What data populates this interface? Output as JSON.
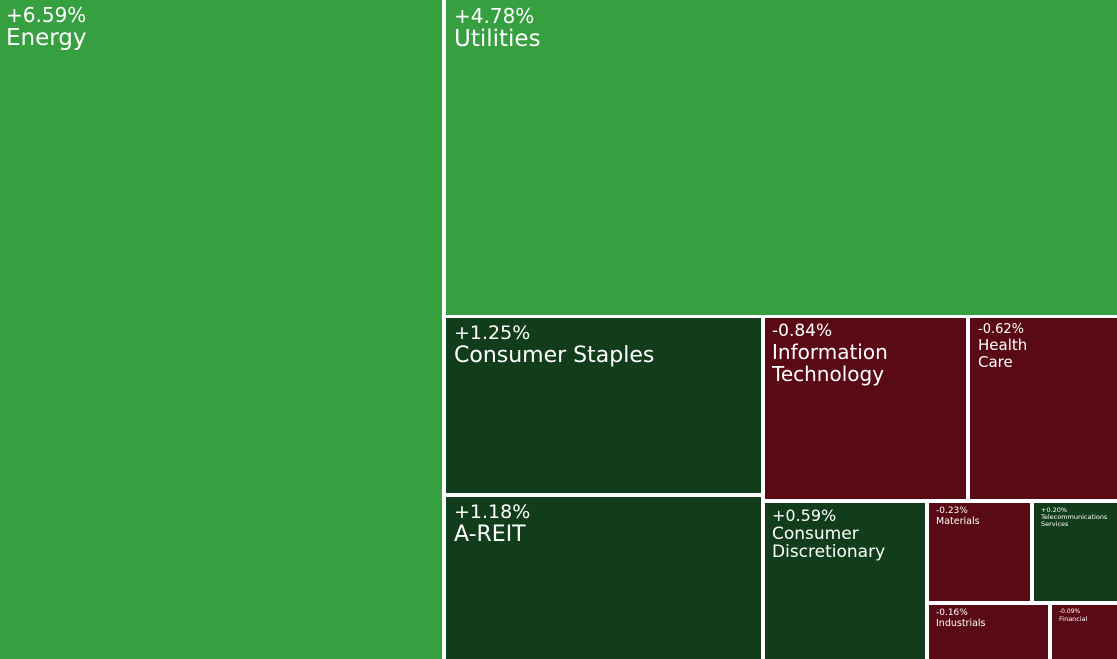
{
  "chart_data": {
    "type": "treemap",
    "categories": [
      "Energy",
      "Utilities",
      "Consumer Staples",
      "A-REIT",
      "Information Technology",
      "Health Care",
      "Consumer Discretionary",
      "Materials",
      "Telecommunications Services",
      "Industrials",
      "Financial"
    ],
    "values": [
      6.59,
      4.78,
      1.25,
      1.18,
      -0.84,
      -0.62,
      0.59,
      -0.23,
      0.2,
      -0.16,
      -0.09
    ],
    "value_labels": [
      "+6.59%",
      "+4.78%",
      "+1.25%",
      "+1.18%",
      "-0.84%",
      "-0.62%",
      "+0.59%",
      "-0.23%",
      "+0.20%",
      "-0.16%",
      "-0.09%"
    ],
    "colors": [
      "#36a041",
      "#36a041",
      "#123d1a",
      "#123d1a",
      "#5a0a14",
      "#5a0a14",
      "#123d1a",
      "#5a0a14",
      "#123d1a",
      "#5a0a14",
      "#5a0a14"
    ]
  }
}
